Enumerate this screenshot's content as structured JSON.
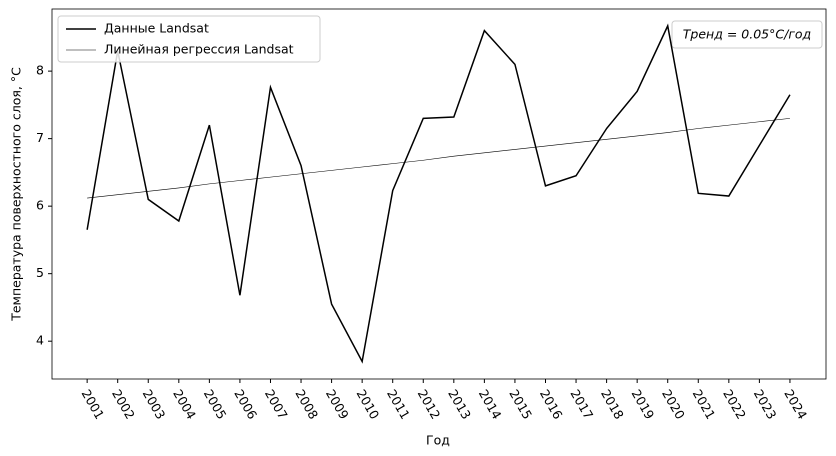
{
  "chart_data": {
    "type": "line",
    "x_label": "Год",
    "y_label": "Температура поверхностного слоя, °C",
    "annotation": "Тренд = 0.05°C/год",
    "x": [
      2001,
      2002,
      2003,
      2004,
      2005,
      2006,
      2007,
      2008,
      2009,
      2010,
      2011,
      2012,
      2013,
      2014,
      2015,
      2016,
      2017,
      2018,
      2019,
      2020,
      2021,
      2022,
      2023,
      2024
    ],
    "series": [
      {
        "name": "Данные Landsat",
        "color": "#000000",
        "width": 1.5,
        "values": [
          5.65,
          8.3,
          6.1,
          5.78,
          7.2,
          4.68,
          7.76,
          6.6,
          4.55,
          3.7,
          6.23,
          7.3,
          7.32,
          8.6,
          8.1,
          6.3,
          6.45,
          7.15,
          7.7,
          8.67,
          6.19,
          6.15,
          6.9,
          7.65
        ]
      },
      {
        "name": "Линейная регрессия Landsat",
        "color": "#000000",
        "width": 0.6,
        "values": [
          6.12,
          6.17,
          6.22,
          6.27,
          6.33,
          6.38,
          6.43,
          6.48,
          6.53,
          6.58,
          6.63,
          6.68,
          6.74,
          6.79,
          6.84,
          6.89,
          6.94,
          6.99,
          7.04,
          7.09,
          7.15,
          7.2,
          7.25,
          7.3
        ]
      }
    ],
    "xlim": [
      1999.85,
      2025.18
    ],
    "xticks": [
      2001,
      2002,
      2003,
      2004,
      2005,
      2006,
      2007,
      2008,
      2009,
      2010,
      2011,
      2012,
      2013,
      2014,
      2015,
      2016,
      2017,
      2018,
      2019,
      2020,
      2021,
      2022,
      2023,
      2024
    ],
    "ylim": [
      3.44,
      8.92
    ],
    "yticks": [
      4,
      5,
      6,
      7,
      8
    ],
    "legend": "upper left"
  }
}
